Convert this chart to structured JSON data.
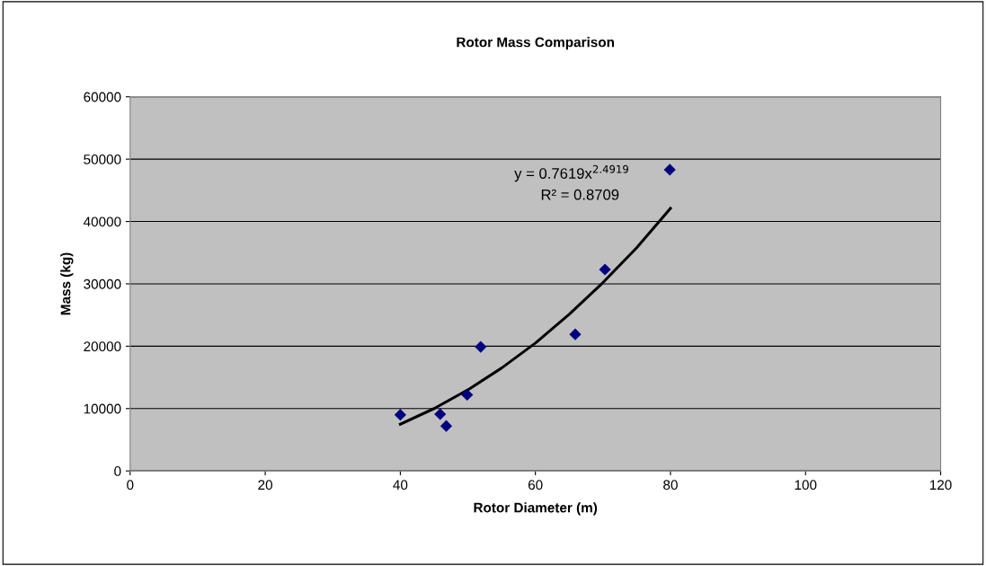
{
  "chart_data": {
    "type": "scatter",
    "title": "Rotor Mass Comparison",
    "xlabel": "Rotor Diameter (m)",
    "ylabel": "Mass (kg)",
    "series": [
      {
        "color": "#000080",
        "marker": "diamond",
        "x": [
          40,
          45.9,
          46.8,
          49.9,
          51.9,
          65.9,
          70.3,
          79.9
        ],
        "values": [
          9000,
          9100,
          7200,
          12200,
          19900,
          21900,
          32300,
          48300
        ]
      },
      {
        "type": "line",
        "color": "#000000",
        "marker": "none",
        "line_style": "solid",
        "x": [
          40,
          45,
          50,
          55,
          60,
          65,
          70,
          75,
          80
        ],
        "values": [
          7500,
          10000,
          13000,
          16500,
          20500,
          25100,
          30200,
          35800,
          42100
        ]
      }
    ],
    "annotations": [
      "y = 0.7619x$^{2.4919}$",
      "R² = 0.8709"
    ],
    "xlim": [
      0,
      120
    ],
    "xticks": [
      0,
      20,
      40,
      60,
      80,
      100,
      120
    ],
    "ylim": [
      0,
      60000
    ],
    "yticks": [
      0,
      10000,
      20000,
      30000,
      40000,
      50000,
      60000
    ],
    "grid": "y",
    "legend": false
  }
}
